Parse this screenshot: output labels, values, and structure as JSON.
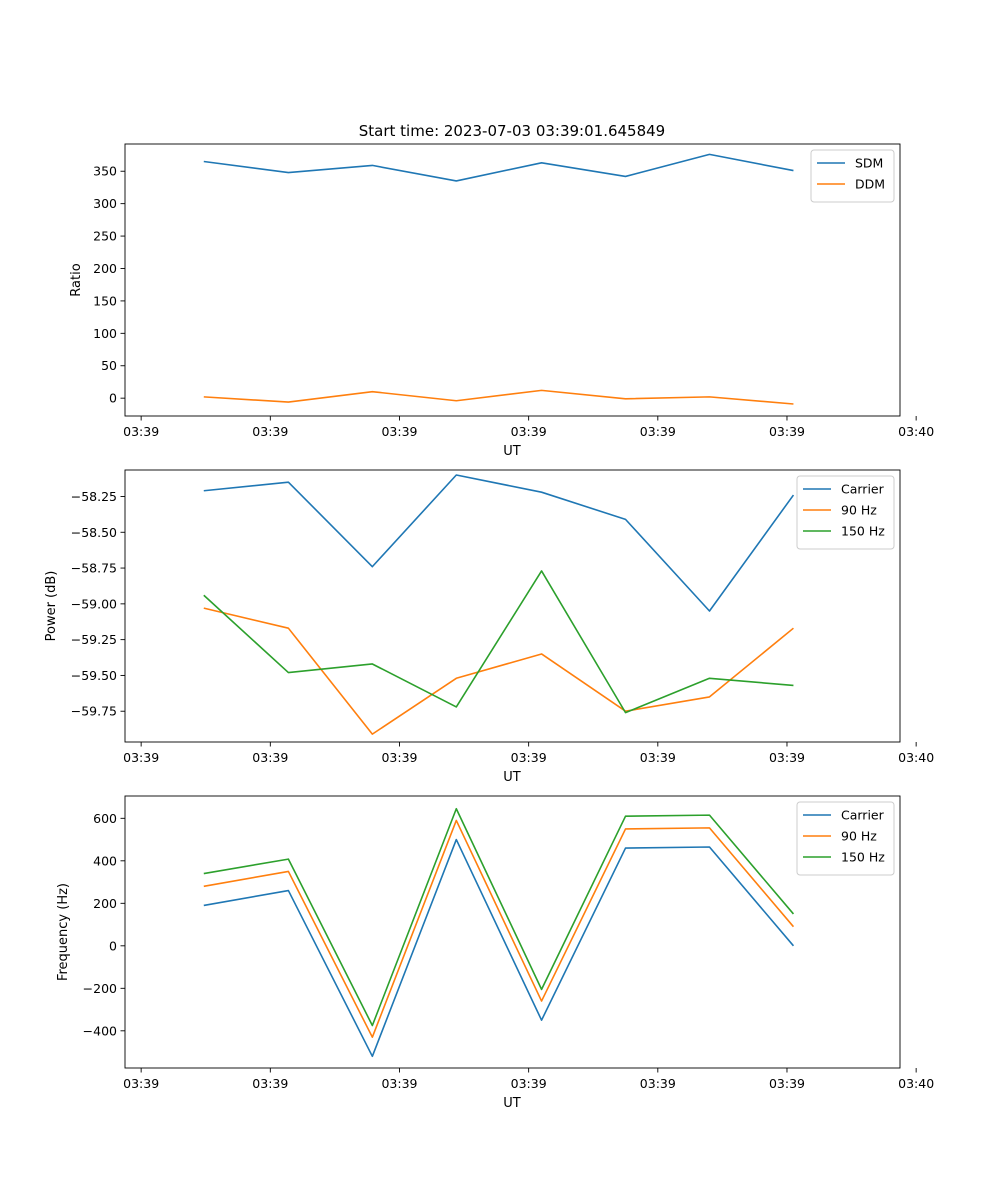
{
  "figure_title": "Start time: 2023-07-03 03:39:01.645849",
  "colors": {
    "blue": "#1f77b4",
    "orange": "#ff7f0e",
    "green": "#2ca02c"
  },
  "chart_data": [
    {
      "type": "line",
      "title": "Start time: 2023-07-03 03:39:01.645849",
      "xlabel": "UT",
      "ylabel": "Ratio",
      "xlim": [
        -0.125,
        5.875
      ],
      "ylim": [
        -27.5,
        392
      ],
      "xticks": [
        0,
        1,
        2,
        3,
        4,
        5,
        6
      ],
      "xtick_labels": [
        "03:39",
        "03:39",
        "03:39",
        "03:39",
        "03:39",
        "03:39",
        "03:40"
      ],
      "yticks": [
        0,
        50,
        100,
        150,
        200,
        250,
        300,
        350
      ],
      "ytick_labels": [
        "0",
        "50",
        "100",
        "150",
        "200",
        "250",
        "300",
        "350"
      ],
      "x": [
        0.485,
        1.14,
        1.79,
        2.44,
        3.1,
        3.75,
        4.4,
        5.05
      ],
      "series": [
        {
          "name": "SDM",
          "color": "#1f77b4",
          "values": [
            365,
            348,
            359,
            335,
            363,
            342,
            376,
            351
          ]
        },
        {
          "name": "DDM",
          "color": "#ff7f0e",
          "values": [
            2,
            -6,
            10,
            -4,
            12,
            -1,
            2,
            -9
          ]
        }
      ],
      "legend": "upper right"
    },
    {
      "type": "line",
      "title": "",
      "xlabel": "UT",
      "ylabel": "Power (dB)",
      "xlim": [
        -0.125,
        5.875
      ],
      "ylim": [
        -59.965,
        -58.065
      ],
      "xticks": [
        0,
        1,
        2,
        3,
        4,
        5,
        6
      ],
      "xtick_labels": [
        "03:39",
        "03:39",
        "03:39",
        "03:39",
        "03:39",
        "03:39",
        "03:40"
      ],
      "yticks": [
        -59.75,
        -59.5,
        -59.25,
        -59.0,
        -58.75,
        -58.5,
        -58.25
      ],
      "ytick_labels": [
        "−59.75",
        "−59.50",
        "−59.25",
        "−59.00",
        "−58.75",
        "−58.50",
        "−58.25"
      ],
      "x": [
        0.485,
        1.14,
        1.79,
        2.44,
        3.1,
        3.75,
        4.4,
        5.05
      ],
      "series": [
        {
          "name": "Carrier",
          "color": "#1f77b4",
          "values": [
            -58.21,
            -58.15,
            -58.74,
            -58.1,
            -58.22,
            -58.41,
            -59.05,
            -58.24
          ]
        },
        {
          "name": "90 Hz",
          "color": "#ff7f0e",
          "values": [
            -59.03,
            -59.17,
            -59.91,
            -59.52,
            -59.35,
            -59.75,
            -59.65,
            -59.17
          ]
        },
        {
          "name": "150 Hz",
          "color": "#2ca02c",
          "values": [
            -58.94,
            -59.48,
            -59.42,
            -59.72,
            -58.77,
            -59.76,
            -59.52,
            -59.57
          ]
        }
      ],
      "legend": "upper right"
    },
    {
      "type": "line",
      "title": "",
      "xlabel": "UT",
      "ylabel": "Frequency (Hz)",
      "xlim": [
        -0.125,
        5.875
      ],
      "ylim": [
        -575,
        705
      ],
      "xticks": [
        0,
        1,
        2,
        3,
        4,
        5,
        6
      ],
      "xtick_labels": [
        "03:39",
        "03:39",
        "03:39",
        "03:39",
        "03:39",
        "03:39",
        "03:40"
      ],
      "yticks": [
        -400,
        -200,
        0,
        200,
        400,
        600
      ],
      "ytick_labels": [
        "−400",
        "−200",
        "0",
        "200",
        "400",
        "600"
      ],
      "x": [
        0.485,
        1.14,
        1.79,
        2.44,
        3.1,
        3.75,
        4.4,
        5.05
      ],
      "series": [
        {
          "name": "Carrier",
          "color": "#1f77b4",
          "values": [
            190,
            260,
            -520,
            500,
            -350,
            460,
            465,
            0
          ]
        },
        {
          "name": "90 Hz",
          "color": "#ff7f0e",
          "values": [
            280,
            350,
            -430,
            590,
            -260,
            550,
            555,
            90
          ]
        },
        {
          "name": "150 Hz",
          "color": "#2ca02c",
          "values": [
            340,
            408,
            -375,
            645,
            -205,
            610,
            615,
            150
          ]
        }
      ],
      "legend": "upper right"
    }
  ]
}
